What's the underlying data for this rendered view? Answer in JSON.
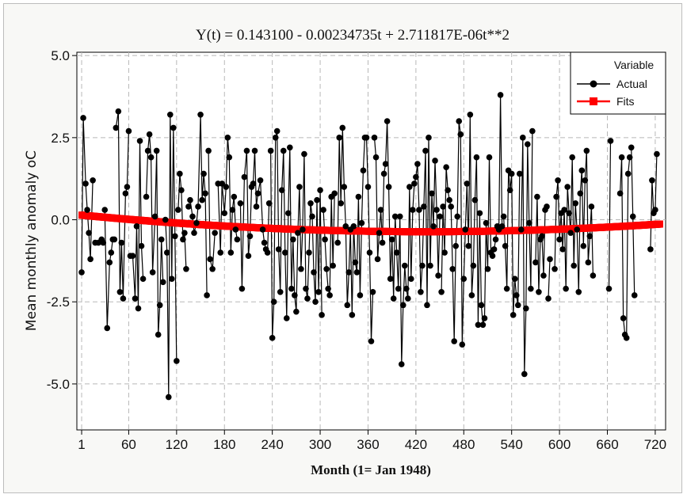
{
  "chart_data": {
    "type": "line",
    "title": "Y(t) = 0.143100 - 0.00234735t + 2.711817E-06t**2",
    "xlabel": "Month (1= Jan 1948)",
    "ylabel": "Mean monthly anomaly oC",
    "xlim": [
      -5,
      733
    ],
    "ylim": [
      -6.4,
      5.1
    ],
    "xticks": [
      1,
      60,
      120,
      180,
      240,
      300,
      360,
      420,
      480,
      540,
      600,
      660,
      720
    ],
    "xtick_labels": [
      "1",
      "60",
      "120",
      "180",
      "240",
      "300",
      "360",
      "420",
      "480",
      "540",
      "600",
      "660",
      "720"
    ],
    "yticks": [
      5.0,
      2.5,
      0.0,
      -2.5,
      -5.0
    ],
    "ytick_labels": [
      "5.0",
      "2.5",
      "0.0",
      "-2.5",
      "-5.0"
    ],
    "grid": true,
    "legend": {
      "title": "Variable",
      "placement": "top-right"
    },
    "fit_coefficients": {
      "a": 0.1431,
      "b": -0.00234735,
      "c": 2.711817e-06
    },
    "series": [
      {
        "name": "Actual",
        "color": "#000000",
        "marker": "circle",
        "segments": [
          {
            "x": [
              1,
              3,
              6,
              8,
              10,
              12,
              15
            ],
            "y": [
              -1.6,
              3.1,
              1.1,
              0.3,
              -0.4,
              -1.2,
              1.2
            ]
          },
          {
            "x": [
              18,
              22,
              26,
              28
            ],
            "y": [
              -0.7,
              -0.7,
              -0.6,
              -0.7
            ]
          },
          {
            "x": [
              30,
              33,
              36,
              38,
              40,
              42
            ],
            "y": [
              0.3,
              -3.3,
              -1.3,
              -1.0,
              -0.6,
              -0.6
            ]
          },
          {
            "x": [
              44,
              47,
              49,
              51,
              53,
              56,
              58,
              60
            ],
            "y": [
              2.8,
              3.3,
              -2.2,
              -0.7,
              -2.4,
              0.8,
              1.0,
              2.7
            ]
          },
          {
            "x": [
              62,
              65,
              68,
              70,
              72,
              74,
              76,
              78
            ],
            "y": [
              -1.1,
              -1.1,
              -2.4,
              -0.2,
              -2.7,
              2.4,
              -0.8,
              -1.8
            ]
          },
          {
            "x": [
              82,
              84,
              86,
              88,
              90,
              93,
              95,
              97,
              99,
              101,
              103
            ],
            "y": [
              0.7,
              2.1,
              2.6,
              1.9,
              -1.6,
              0.1,
              2.1,
              -3.5,
              -2.6,
              -0.6,
              -1.9
            ]
          },
          {
            "x": [
              106,
              108,
              110,
              112,
              114,
              116,
              118,
              120
            ],
            "y": [
              0.0,
              -1.0,
              -5.4,
              3.2,
              -1.8,
              2.8,
              -0.5,
              -4.3
            ]
          },
          {
            "x": [
              122,
              124,
              126,
              128,
              130,
              132
            ],
            "y": [
              0.3,
              1.4,
              0.9,
              -0.6,
              -0.4,
              -1.5
            ]
          },
          {
            "x": [
              135,
              137,
              140,
              142,
              145,
              147,
              150,
              152,
              154,
              156,
              158
            ],
            "y": [
              0.4,
              0.6,
              0.1,
              -0.4,
              -0.1,
              0.4,
              3.2,
              0.6,
              1.4,
              0.8,
              -2.3
            ]
          },
          {
            "x": [
              160,
              162,
              165,
              168
            ],
            "y": [
              2.1,
              -1.2,
              -1.5,
              -0.4
            ]
          },
          {
            "x": [
              172,
              175,
              177,
              180,
              182,
              184,
              186,
              188,
              190,
              192,
              194,
              196
            ],
            "y": [
              1.1,
              -1.0,
              1.1,
              0.2,
              1.0,
              2.5,
              1.9,
              -1.0,
              0.3,
              0.7,
              -0.3,
              -0.6
            ]
          },
          {
            "x": [
              200,
              202,
              205,
              208,
              210,
              212,
              214,
              216,
              218,
              220,
              222,
              225,
              228,
              230,
              232,
              234,
              236
            ],
            "y": [
              0.5,
              -2.1,
              1.3,
              2.1,
              -1.1,
              -0.5,
              1.0,
              1.1,
              2.1,
              0.4,
              0.8,
              1.2,
              -0.3,
              -0.7,
              -0.9,
              -1.0,
              0.5
            ]
          },
          {
            "x": [
              238,
              240,
              242,
              244,
              246,
              248,
              250,
              252,
              254,
              256,
              258,
              260,
              262,
              264,
              266,
              268,
              270,
              272,
              274,
              276,
              278,
              280,
              282,
              284,
              286,
              288,
              290,
              292,
              294,
              296,
              298,
              300,
              302
            ],
            "y": [
              2.1,
              -3.6,
              -2.5,
              2.5,
              2.7,
              -0.9,
              -2.2,
              0.9,
              2.1,
              -1.0,
              -3.0,
              0.2,
              2.2,
              -2.1,
              -0.6,
              -2.3,
              -2.8,
              -0.4,
              1.0,
              -1.5,
              -0.3,
              2.0,
              -2.1,
              -2.4,
              -1.0,
              0.5,
              0.1,
              -1.6,
              -2.5,
              0.6,
              -2.2,
              0.9,
              -2.9
            ]
          },
          {
            "x": [
              304,
              306,
              308,
              310,
              312,
              314,
              316,
              318
            ],
            "y": [
              0.3,
              -0.6,
              -1.5,
              -2.1,
              -2.3,
              0.7,
              -1.4,
              0.8
            ]
          },
          {
            "x": [
              322,
              324,
              326,
              328,
              330,
              332,
              334,
              336,
              338,
              340,
              342,
              344,
              346,
              348,
              350,
              352,
              354,
              356,
              358,
              360,
              362,
              364,
              366
            ],
            "y": [
              -0.7,
              2.5,
              0.5,
              2.8,
              1.0,
              -0.2,
              -2.6,
              -1.6,
              -0.3,
              -2.9,
              -0.2,
              -1.3,
              -1.6,
              0.7,
              -2.3,
              -0.1,
              1.5,
              2.5,
              2.5,
              1.0,
              -1.0,
              -3.7,
              -2.2
            ]
          },
          {
            "x": [
              368,
              370,
              372,
              374,
              376,
              378,
              380,
              382,
              384,
              386,
              388,
              390,
              392,
              394,
              396,
              398,
              400,
              402,
              404,
              406,
              408,
              410,
              412,
              414,
              416,
              418,
              420,
              422,
              424,
              426,
              428,
              430,
              432,
              434,
              436,
              438,
              440,
              442,
              444,
              446,
              448,
              450
            ],
            "y": [
              2.5,
              1.9,
              -1.2,
              -0.4,
              0.3,
              -0.7,
              1.4,
              1.7,
              3.0,
              1.0,
              -1.8,
              -0.6,
              -2.4,
              0.1,
              -1.0,
              -2.1,
              0.1,
              -4.4,
              -2.6,
              -1.4,
              -2.1,
              -2.4,
              1.0,
              -1.8,
              0.3,
              1.1,
              1.3,
              1.7,
              0.3,
              -2.2,
              -1.4,
              0.4,
              2.1,
              -2.6,
              2.5,
              -1.4,
              0.8,
              -0.2,
              1.8,
              0.3,
              -1.7,
              0.1
            ]
          },
          {
            "x": [
              452,
              454,
              456,
              458,
              460,
              462,
              464,
              466,
              468,
              470,
              472,
              474,
              476,
              478,
              480,
              482,
              484,
              486,
              488,
              490,
              492,
              494,
              496,
              498,
              500,
              502,
              504,
              506,
              508,
              510,
              512,
              514,
              516,
              518,
              520,
              522,
              524,
              526,
              528
            ],
            "y": [
              -2.2,
              0.4,
              -1.0,
              1.6,
              0.9,
              0.6,
              0.4,
              -1.5,
              -3.7,
              -0.8,
              0.1,
              3.0,
              2.6,
              -3.8,
              -1.8,
              -0.3,
              1.1,
              -0.8,
              3.2,
              -2.3,
              -1.4,
              0.6,
              1.9,
              -3.2,
              0.2,
              -2.6,
              -3.2,
              -3.0,
              -0.1,
              -1.5,
              1.9,
              -1.0,
              -1.1,
              -0.9,
              -0.6,
              -0.2,
              -0.3,
              3.8,
              -0.2
            ]
          },
          {
            "x": [
              530,
              532,
              534,
              536,
              538,
              540,
              542,
              544,
              546,
              548,
              550
            ],
            "y": [
              0.1,
              -0.8,
              -2.1,
              1.5,
              0.9,
              1.4,
              -2.9,
              -1.8,
              -2.3,
              -2.6,
              1.4
            ]
          },
          {
            "x": [
              552,
              554,
              556,
              558,
              560,
              562,
              564,
              566
            ],
            "y": [
              -0.3,
              2.5,
              -4.7,
              -2.7,
              2.3,
              -0.1,
              -2.1,
              2.7
            ]
          },
          {
            "x": [
              570,
              572,
              574,
              576,
              578,
              580,
              582,
              584
            ],
            "y": [
              -1.3,
              0.7,
              -2.2,
              -0.6,
              -0.5,
              -1.7,
              0.3,
              0.4
            ]
          },
          {
            "x": [
              586,
              588
            ],
            "y": [
              -2.4,
              -1.2
            ]
          },
          {
            "x": [
              594,
              596,
              598,
              600,
              602,
              604,
              606,
              608,
              610,
              612,
              614,
              616,
              618,
              620,
              622,
              624,
              626,
              628,
              630,
              632,
              634,
              636,
              638,
              640,
              642
            ],
            "y": [
              -1.5,
              0.7,
              1.2,
              -0.6,
              0.2,
              -0.9,
              0.3,
              -2.1,
              1.0,
              0.2,
              -0.4,
              1.9,
              -1.4,
              0.5,
              -0.3,
              -2.2,
              0.8,
              1.5,
              -0.8,
              1.2,
              2.1,
              -1.3,
              -0.5,
              0.4,
              -1.7
            ]
          },
          {
            "x": [
              662,
              664
            ],
            "y": [
              -2.1,
              2.4
            ]
          },
          {
            "x": [
              676,
              678,
              680,
              682,
              684,
              686,
              688
            ],
            "y": [
              0.8,
              1.9,
              -3.0,
              -3.5,
              -3.6,
              1.4,
              1.9
            ]
          },
          {
            "x": [
              690,
              692,
              694
            ],
            "y": [
              2.2,
              0.1,
              -2.3
            ]
          },
          {
            "x": [
              714,
              716,
              718,
              720,
              722
            ],
            "y": [
              -0.9,
              1.2,
              0.2,
              0.3,
              2.0
            ]
          }
        ]
      },
      {
        "name": "Fits",
        "color": "#ff0000",
        "marker": "square"
      }
    ]
  }
}
